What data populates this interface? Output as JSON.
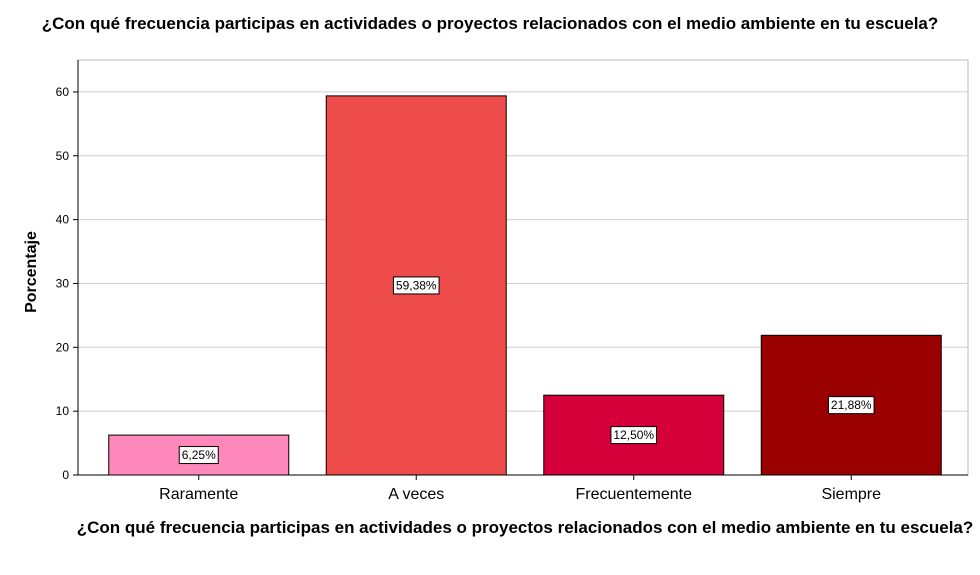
{
  "chart_data": {
    "type": "bar",
    "title": "¿Con qué frecuencia participas en actividades o proyectos relacionados con el medio ambiente en tu escuela?",
    "xlabel": "¿Con qué frecuencia participas en actividades o proyectos relacionados con el medio ambiente en tu escuela?",
    "ylabel": "Porcentaje",
    "categories": [
      "Raramente",
      "A veces",
      "Frecuentemente",
      "Siempre"
    ],
    "values": [
      6.25,
      59.38,
      12.5,
      21.88
    ],
    "data_labels": [
      "6,25%",
      "59,38%",
      "12,50%",
      "21,88%"
    ],
    "colors": [
      "#ff88bb",
      "#ee4b4b",
      "#d5003a",
      "#9b0000"
    ],
    "ylim": [
      0,
      65
    ],
    "yticks": [
      0,
      10,
      20,
      30,
      40,
      50,
      60
    ],
    "grid": true,
    "legend": "none"
  }
}
